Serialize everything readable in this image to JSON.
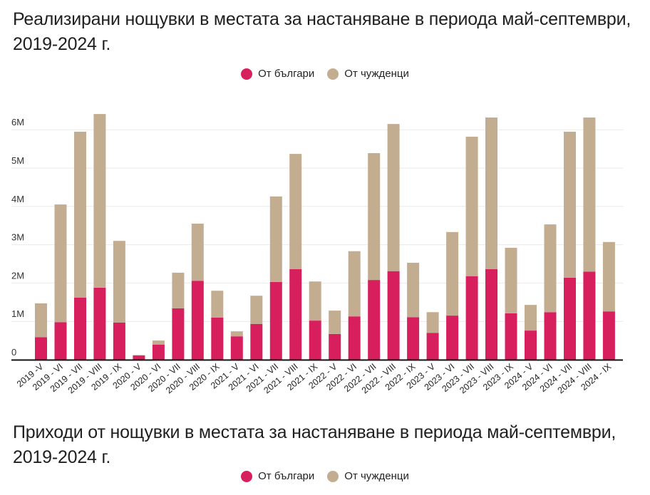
{
  "titles": {
    "nights": "Реализирани нощувки в местата за настаняване в периода май-септември, 2019-2024 г.",
    "revenue": "Приходи от нощувки в местата за настаняване в периода май-септември, 2019-2024 г."
  },
  "legend": [
    {
      "label": "От българи",
      "color": "#d81f5e"
    },
    {
      "label": "От чужденци",
      "color": "#c3ad91"
    }
  ],
  "chart_data": {
    "type": "bar",
    "stacked": true,
    "title": "Реализирани нощувки в местата за настаняване в периода май-септември, 2019-2024 г.",
    "xlabel": "",
    "ylabel": "",
    "ylim": [
      0,
      6500000
    ],
    "grid": true,
    "legend_position": "top-center",
    "yticks": [
      {
        "value": 0,
        "label": "0"
      },
      {
        "value": 1000000,
        "label": "1M"
      },
      {
        "value": 2000000,
        "label": "2M"
      },
      {
        "value": 3000000,
        "label": "3M"
      },
      {
        "value": 4000000,
        "label": "4M"
      },
      {
        "value": 5000000,
        "label": "5M"
      },
      {
        "value": 6000000,
        "label": "6M"
      }
    ],
    "categories": [
      "2019 -V",
      "2019 - VI",
      "2019 - VII",
      "2019 - VIII",
      "2019 - IX",
      "2020 - V",
      "2020 - VI",
      "2020 - VII",
      "2020 - VIII",
      "2020 - IX",
      "2021 - V",
      "2021 - VI",
      "2021 - VII",
      "2021 - VIII",
      "2021 - IX",
      "2022 - V",
      "2022 - VI",
      "2022 - VII",
      "2022 - VIII",
      "2022 - IX",
      "2023 - V",
      "2023 - VI",
      "2023 - VII",
      "2023 - VIII",
      "2023 - IX",
      "2024 - V",
      "2024 - VI",
      "2024 - VII",
      "2024 - VIII",
      "2024 - IX"
    ],
    "series": [
      {
        "name": "От българи",
        "color": "#d81f5e",
        "values": [
          590000,
          980000,
          1620000,
          1880000,
          970000,
          110000,
          390000,
          1340000,
          2060000,
          1100000,
          610000,
          930000,
          2030000,
          2360000,
          1020000,
          670000,
          1130000,
          2080000,
          2310000,
          1110000,
          700000,
          1150000,
          2180000,
          2360000,
          1210000,
          760000,
          1240000,
          2140000,
          2300000,
          1260000
        ]
      },
      {
        "name": "От чужденци",
        "color": "#c3ad91",
        "values": [
          880000,
          3070000,
          4330000,
          4530000,
          2130000,
          10000,
          110000,
          930000,
          1490000,
          700000,
          130000,
          740000,
          2230000,
          3010000,
          1020000,
          610000,
          1700000,
          3310000,
          3840000,
          1420000,
          540000,
          2180000,
          3640000,
          3960000,
          1710000,
          670000,
          2290000,
          3810000,
          4020000,
          1810000
        ]
      }
    ]
  }
}
